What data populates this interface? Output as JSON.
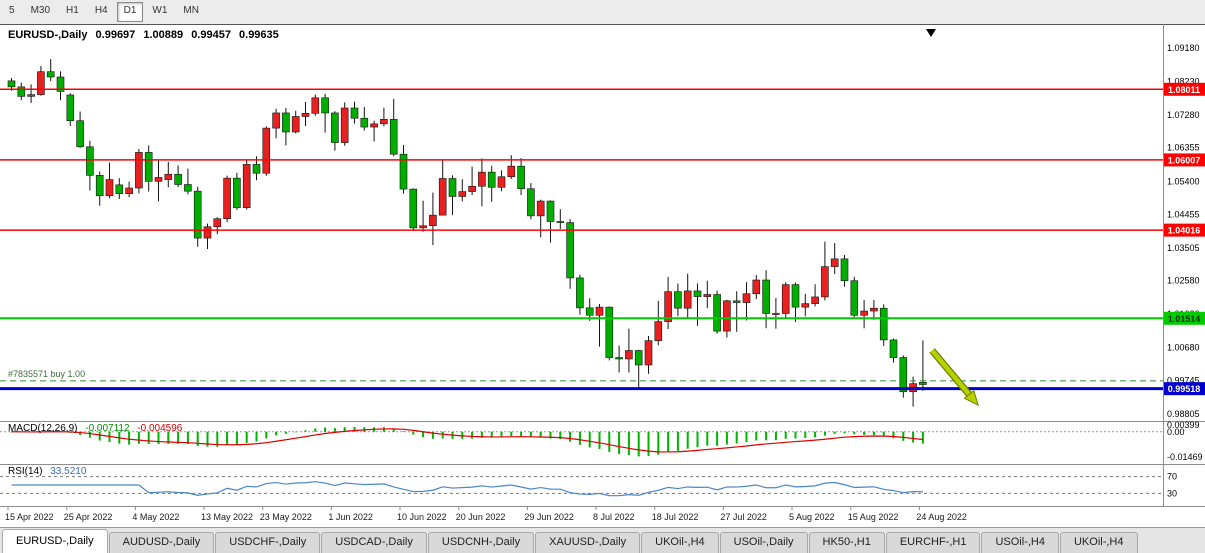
{
  "toolbar": {
    "timeframes": [
      {
        "label": "5",
        "active": false
      },
      {
        "label": "M30",
        "active": false
      },
      {
        "label": "H1",
        "active": false
      },
      {
        "label": "H4",
        "active": false
      },
      {
        "label": "D1",
        "active": true
      },
      {
        "label": "W1",
        "active": false
      },
      {
        "label": "MN",
        "active": false
      }
    ]
  },
  "chart_header": {
    "symbol_period": "EURUSD-,Daily",
    "open": "0.99697",
    "high": "1.00889",
    "low": "0.99457",
    "close": "0.99635"
  },
  "order": {
    "label": "#7835571 buy 1.00",
    "price": 0.9974,
    "line_color": "#2e8b2e"
  },
  "lines": [
    {
      "price": 1.08011,
      "label": "1.08011",
      "color": "#ff0000",
      "width": 1.5,
      "text_color": "#ffffff"
    },
    {
      "price": 1.06007,
      "label": "1.06007",
      "color": "#ff0000",
      "width": 1.5,
      "text_color": "#ffffff"
    },
    {
      "price": 1.04016,
      "label": "1.04016",
      "color": "#ff0000",
      "width": 1.5,
      "text_color": "#ffffff"
    },
    {
      "price": 1.01514,
      "label": "1.01514",
      "color": "#00cc00",
      "width": 2,
      "text_color": "#003300"
    },
    {
      "price": 0.99518,
      "label": "0.99518",
      "color": "#0000cc",
      "width": 3,
      "text_color": "#ffffff"
    }
  ],
  "arrow": {
    "from_index": 94.3,
    "from_price": 1.006,
    "to_index": 99.0,
    "to_price": 0.9905,
    "color": "#b8d200",
    "outline": "#6e7e00"
  },
  "axes": {
    "y_ticks": [
      "1.09180",
      "1.08230",
      "1.07280",
      "1.06355",
      "1.05400",
      "1.04455",
      "1.03505",
      "1.02580",
      "1.01630",
      "1.00680",
      "0.99745",
      "0.98805"
    ],
    "x_ticks": [
      {
        "label": "15 Apr 2022",
        "index": 0
      },
      {
        "label": "25 Apr 2022",
        "index": 6
      },
      {
        "label": "4 May 2022",
        "index": 13
      },
      {
        "label": "13 May 2022",
        "index": 20
      },
      {
        "label": "23 May 2022",
        "index": 26
      },
      {
        "label": "1 Jun 2022",
        "index": 33
      },
      {
        "label": "10 Jun 2022",
        "index": 40
      },
      {
        "label": "20 Jun 2022",
        "index": 46
      },
      {
        "label": "29 Jun 2022",
        "index": 53
      },
      {
        "label": "8 Jul 2022",
        "index": 60
      },
      {
        "label": "18 Jul 2022",
        "index": 66
      },
      {
        "label": "27 Jul 2022",
        "index": 73
      },
      {
        "label": "5 Aug 2022",
        "index": 80
      },
      {
        "label": "15 Aug 2022",
        "index": 86
      },
      {
        "label": "24 Aug 2022",
        "index": 93
      }
    ]
  },
  "indicators": {
    "macd": {
      "label": "MACD(12,26,9)",
      "value_main": "-0.007112",
      "value_signal": "-0.004596",
      "scale_labels": [
        "0.00399",
        "0.00",
        "-0.01469"
      ],
      "range": [
        0.0062,
        -0.0186
      ],
      "histogram_color": "#00b400",
      "signal_color": "#e00000"
    },
    "rsi": {
      "label": "RSI(14)",
      "value": "33.5210",
      "levels": [
        70,
        30
      ],
      "range": [
        0,
        100
      ],
      "line_color": "#4a86c8"
    }
  },
  "colors": {
    "bull": "#e82020",
    "bear": "#00ae00",
    "wick": "#141414",
    "candle_border": "#141414",
    "chart_bg": "#ffffff",
    "separator": "#8c8c8c",
    "axis_text": "#000000",
    "date_text": "#1a1a1a",
    "shift_marker": "#000000"
  },
  "chart_data": {
    "type": "candlestick",
    "symbol": "EURUSD-",
    "period": "Daily",
    "convention": "red-up-green-down",
    "y_range": [
      0.986,
      1.0975
    ],
    "dates": [
      "2022-04-15",
      "2022-04-18",
      "2022-04-19",
      "2022-04-20",
      "2022-04-21",
      "2022-04-22",
      "2022-04-25",
      "2022-04-26",
      "2022-04-27",
      "2022-04-28",
      "2022-04-29",
      "2022-05-02",
      "2022-05-03",
      "2022-05-04",
      "2022-05-05",
      "2022-05-06",
      "2022-05-09",
      "2022-05-10",
      "2022-05-11",
      "2022-05-12",
      "2022-05-13",
      "2022-05-16",
      "2022-05-17",
      "2022-05-18",
      "2022-05-19",
      "2022-05-20",
      "2022-05-23",
      "2022-05-24",
      "2022-05-25",
      "2022-05-26",
      "2022-05-27",
      "2022-05-30",
      "2022-05-31",
      "2022-06-01",
      "2022-06-02",
      "2022-06-03",
      "2022-06-06",
      "2022-06-07",
      "2022-06-08",
      "2022-06-09",
      "2022-06-10",
      "2022-06-13",
      "2022-06-14",
      "2022-06-15",
      "2022-06-16",
      "2022-06-17",
      "2022-06-20",
      "2022-06-21",
      "2022-06-22",
      "2022-06-23",
      "2022-06-24",
      "2022-06-27",
      "2022-06-28",
      "2022-06-29",
      "2022-06-30",
      "2022-07-01",
      "2022-07-04",
      "2022-07-05",
      "2022-07-06",
      "2022-07-07",
      "2022-07-08",
      "2022-07-11",
      "2022-07-12",
      "2022-07-13",
      "2022-07-14",
      "2022-07-15",
      "2022-07-18",
      "2022-07-19",
      "2022-07-20",
      "2022-07-21",
      "2022-07-22",
      "2022-07-25",
      "2022-07-26",
      "2022-07-27",
      "2022-07-28",
      "2022-07-29",
      "2022-08-01",
      "2022-08-02",
      "2022-08-03",
      "2022-08-04",
      "2022-08-05",
      "2022-08-08",
      "2022-08-09",
      "2022-08-10",
      "2022-08-11",
      "2022-08-12",
      "2022-08-15",
      "2022-08-16",
      "2022-08-17",
      "2022-08-18",
      "2022-08-19",
      "2022-08-22",
      "2022-08-23",
      "2022-08-24"
    ],
    "candles": [
      [
        1.0825,
        1.0833,
        1.0797,
        1.0808
      ],
      [
        1.0808,
        1.082,
        1.077,
        1.0781
      ],
      [
        1.0781,
        1.0815,
        1.0762,
        1.0786
      ],
      [
        1.0786,
        1.0867,
        1.0783,
        1.0851
      ],
      [
        1.0851,
        1.0887,
        1.0824,
        1.0836
      ],
      [
        1.0836,
        1.0852,
        1.077,
        1.0795
      ],
      [
        1.0785,
        1.079,
        1.0697,
        1.0712
      ],
      [
        1.0712,
        1.0738,
        1.0635,
        1.0638
      ],
      [
        1.0638,
        1.0655,
        1.0514,
        1.0557
      ],
      [
        1.0557,
        1.0568,
        1.0471,
        1.0499
      ],
      [
        1.0499,
        1.0593,
        1.0492,
        1.0545
      ],
      [
        1.053,
        1.0549,
        1.049,
        1.0505
      ],
      [
        1.0505,
        1.0539,
        1.0495,
        1.0521
      ],
      [
        1.0521,
        1.0632,
        1.0506,
        1.0622
      ],
      [
        1.0622,
        1.0642,
        1.0511,
        1.054
      ],
      [
        1.054,
        1.0599,
        1.0483,
        1.0551
      ],
      [
        1.0545,
        1.0595,
        1.0523,
        1.056
      ],
      [
        1.056,
        1.0585,
        1.0524,
        1.0531
      ],
      [
        1.0531,
        1.0576,
        1.0503,
        1.0512
      ],
      [
        1.0512,
        1.0525,
        1.0354,
        1.0379
      ],
      [
        1.0379,
        1.042,
        1.0348,
        1.0411
      ],
      [
        1.0411,
        1.0438,
        1.039,
        1.0434
      ],
      [
        1.0434,
        1.0556,
        1.0424,
        1.0549
      ],
      [
        1.0549,
        1.0564,
        1.0459,
        1.0465
      ],
      [
        1.0465,
        1.0599,
        1.046,
        1.0588
      ],
      [
        1.0588,
        1.0611,
        1.0543,
        1.0563
      ],
      [
        1.0563,
        1.0696,
        1.0556,
        1.0691
      ],
      [
        1.0691,
        1.0746,
        1.0662,
        1.0734
      ],
      [
        1.0734,
        1.0748,
        1.0642,
        1.068
      ],
      [
        1.068,
        1.074,
        1.0676,
        1.0724
      ],
      [
        1.0724,
        1.0765,
        1.0697,
        1.0733
      ],
      [
        1.0733,
        1.0786,
        1.0726,
        1.0777
      ],
      [
        1.0777,
        1.0788,
        1.0678,
        1.0734
      ],
      [
        1.0734,
        1.0739,
        1.0627,
        1.065
      ],
      [
        1.065,
        1.0764,
        1.0641,
        1.0748
      ],
      [
        1.0748,
        1.0766,
        1.0704,
        1.0719
      ],
      [
        1.0719,
        1.0751,
        1.0684,
        1.0694
      ],
      [
        1.0694,
        1.0712,
        1.0653,
        1.0703
      ],
      [
        1.0703,
        1.0749,
        1.0696,
        1.0716
      ],
      [
        1.0716,
        1.0774,
        1.0611,
        1.0617
      ],
      [
        1.0617,
        1.0643,
        1.0505,
        1.0518
      ],
      [
        1.0518,
        1.052,
        1.0399,
        1.0408
      ],
      [
        1.0408,
        1.0485,
        1.0397,
        1.0414
      ],
      [
        1.0414,
        1.0508,
        1.0359,
        1.0444
      ],
      [
        1.0444,
        1.0601,
        1.0444,
        1.0548
      ],
      [
        1.0548,
        1.0557,
        1.0444,
        1.0497
      ],
      [
        1.0497,
        1.0546,
        1.0483,
        1.0511
      ],
      [
        1.0511,
        1.0582,
        1.0501,
        1.0526
      ],
      [
        1.0526,
        1.0605,
        1.0469,
        1.0566
      ],
      [
        1.0566,
        1.0584,
        1.0482,
        1.0523
      ],
      [
        1.0523,
        1.0571,
        1.0512,
        1.0553
      ],
      [
        1.0553,
        1.0614,
        1.0547,
        1.0583
      ],
      [
        1.0583,
        1.0606,
        1.0501,
        1.0519
      ],
      [
        1.0519,
        1.0535,
        1.0432,
        1.0442
      ],
      [
        1.0442,
        1.0488,
        1.0381,
        1.0484
      ],
      [
        1.0484,
        1.0486,
        1.0366,
        1.0426
      ],
      [
        1.0426,
        1.0461,
        1.0405,
        1.0423
      ],
      [
        1.0423,
        1.0433,
        1.0235,
        1.0266
      ],
      [
        1.0266,
        1.0275,
        1.0162,
        1.0181
      ],
      [
        1.0181,
        1.0208,
        1.0144,
        1.016
      ],
      [
        1.016,
        1.0192,
        1.0071,
        1.0183
      ],
      [
        1.0183,
        1.0185,
        1.0032,
        1.004
      ],
      [
        1.004,
        1.0074,
        0.9998,
        1.0036
      ],
      [
        1.0036,
        1.0122,
        0.9998,
        1.006
      ],
      [
        1.006,
        1.0062,
        0.9952,
        1.0019
      ],
      [
        1.0019,
        1.0101,
        0.9994,
        1.0088
      ],
      [
        1.0088,
        1.0201,
        1.0075,
        1.0142
      ],
      [
        1.0142,
        1.0269,
        1.0121,
        1.0227
      ],
      [
        1.0227,
        1.025,
        1.0157,
        1.018
      ],
      [
        1.018,
        1.0278,
        1.0152,
        1.0229
      ],
      [
        1.0229,
        1.025,
        1.013,
        1.0213
      ],
      [
        1.0213,
        1.0258,
        1.018,
        1.0219
      ],
      [
        1.0219,
        1.023,
        1.0108,
        1.0115
      ],
      [
        1.0115,
        1.0204,
        1.0097,
        1.0201
      ],
      [
        1.0201,
        1.0228,
        1.0113,
        1.0196
      ],
      [
        1.0196,
        1.0254,
        1.0145,
        1.0221
      ],
      [
        1.0221,
        1.0274,
        1.0206,
        1.026
      ],
      [
        1.026,
        1.0288,
        1.0123,
        1.0165
      ],
      [
        1.0165,
        1.0209,
        1.0122,
        1.0165
      ],
      [
        1.0165,
        1.0254,
        1.0152,
        1.0247
      ],
      [
        1.0247,
        1.0253,
        1.0141,
        1.0183
      ],
      [
        1.0183,
        1.0221,
        1.0157,
        1.0193
      ],
      [
        1.0193,
        1.0248,
        1.0185,
        1.0212
      ],
      [
        1.0212,
        1.0369,
        1.0202,
        1.0298
      ],
      [
        1.0298,
        1.0365,
        1.0277,
        1.032
      ],
      [
        1.032,
        1.0331,
        1.0241,
        1.0258
      ],
      [
        1.0258,
        1.0269,
        1.0154,
        1.016
      ],
      [
        1.016,
        1.0203,
        1.0123,
        1.0172
      ],
      [
        1.0172,
        1.0203,
        1.0147,
        1.018
      ],
      [
        1.018,
        1.0191,
        1.0073,
        1.009
      ],
      [
        1.009,
        1.0094,
        1.0026,
        1.004
      ],
      [
        1.004,
        1.0046,
        0.9926,
        0.9943
      ],
      [
        0.9943,
        0.9986,
        0.9901,
        0.9966
      ],
      [
        0.99697,
        1.00889,
        0.99457,
        0.99635
      ]
    ]
  },
  "tabs": [
    {
      "label": "EURUSD-,Daily",
      "active": true
    },
    {
      "label": "AUDUSD-,Daily",
      "active": false
    },
    {
      "label": "USDCHF-,Daily",
      "active": false
    },
    {
      "label": "USDCAD-,Daily",
      "active": false
    },
    {
      "label": "USDCNH-,Daily",
      "active": false
    },
    {
      "label": "XAUUSD-,Daily",
      "active": false
    },
    {
      "label": "UKOil-,H4",
      "active": false
    },
    {
      "label": "USOil-,Daily",
      "active": false
    },
    {
      "label": "HK50-,H1",
      "active": false
    },
    {
      "label": "EURCHF-,H1",
      "active": false
    },
    {
      "label": "USOil-,H4",
      "active": false
    },
    {
      "label": "UKOil-,H4",
      "active": false
    }
  ]
}
